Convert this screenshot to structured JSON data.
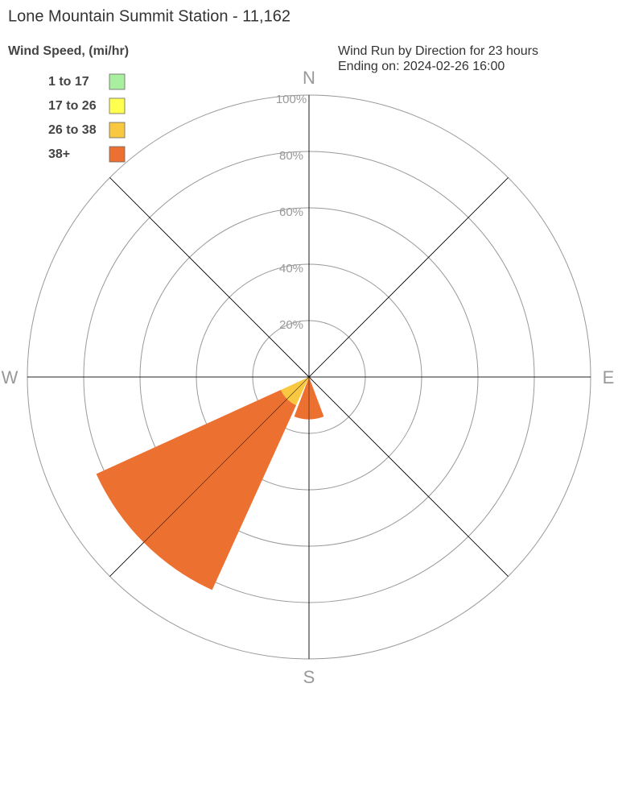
{
  "chart_data": {
    "type": "windrose",
    "title": "Lone Mountain Summit Station - 11,162",
    "legend_title": "Wind Speed, (mi/hr)",
    "subtitle": [
      "Wind Run by Direction for 23 hours",
      "Ending on: 2024-02-26 16:00"
    ],
    "categories": [
      "N",
      null,
      "E",
      null,
      "S",
      null,
      "W",
      null
    ],
    "series": [
      {
        "name": "1 to 17",
        "color": "#a8f0a0",
        "values": [
          0,
          0,
          0,
          0,
          0,
          0,
          0,
          0
        ]
      },
      {
        "name": "17 to 26",
        "color": "#ffff50",
        "values": [
          0,
          0,
          0,
          0,
          0,
          0,
          0,
          0
        ]
      },
      {
        "name": "26 to 38",
        "color": "#f8c840",
        "values": [
          0,
          0,
          0,
          0,
          0,
          11,
          0,
          0
        ]
      },
      {
        "name": "38+",
        "color": "#ec7030",
        "values": [
          0,
          0,
          0,
          0,
          15,
          72,
          0,
          0
        ]
      }
    ],
    "rlim": [
      0,
      100
    ],
    "rticks": [
      {
        "value": 20,
        "label": "20%"
      },
      {
        "value": 40,
        "label": "40%"
      },
      {
        "value": 60,
        "label": "60%"
      },
      {
        "value": 80,
        "label": "80%"
      },
      {
        "value": 100,
        "label": "100%"
      }
    ]
  }
}
